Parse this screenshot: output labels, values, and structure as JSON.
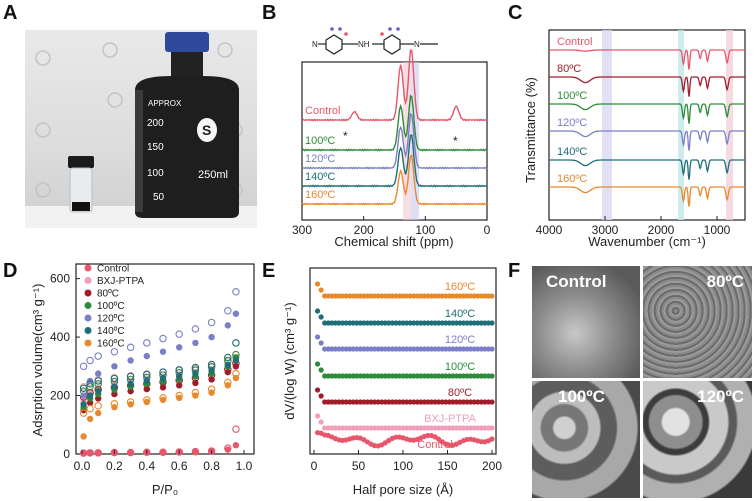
{
  "panels": {
    "A": {
      "letter": "A"
    },
    "B": {
      "letter": "B"
    },
    "C": {
      "letter": "C"
    },
    "D": {
      "letter": "D"
    },
    "E": {
      "letter": "E"
    },
    "F": {
      "letter": "F"
    }
  },
  "photo_A": {
    "bottle_label": "APPROX",
    "marks": [
      "200",
      "150",
      "100",
      "50"
    ],
    "volume": "250ml",
    "logo_letter": "S"
  },
  "sem_labels": [
    "Control",
    "80ºC",
    "100ºC",
    "120ºC"
  ],
  "colors": {
    "Control": "#e8566b",
    "BXJ-PTPA": "#f0a0b8",
    "80C": "#a11d2b",
    "100C": "#2e8b3a",
    "120C": "#7a7fc8",
    "140C": "#1f6e78",
    "160C": "#e88a2c"
  },
  "chart_data": [
    {
      "panel": "B",
      "type": "line",
      "xlabel": "Chemical shift (ppm)",
      "ylabel": "",
      "xlim": [
        300,
        0
      ],
      "xticks": [
        "300",
        "200",
        "100",
        "0"
      ],
      "series": [
        {
          "name": "Control",
          "peaks": [
            [
              140,
              1.0
            ],
            [
              123,
              1.3
            ],
            [
              50,
              0.25
            ],
            [
              215,
              0.15
            ]
          ]
        },
        {
          "name": "100ºC",
          "peaks": [
            [
              140,
              0.8
            ],
            [
              123,
              1.0
            ]
          ]
        },
        {
          "name": "120ºC",
          "peaks": [
            [
              140,
              0.75
            ],
            [
              123,
              1.0
            ]
          ]
        },
        {
          "name": "140ºC",
          "peaks": [
            [
              140,
              0.7
            ],
            [
              123,
              0.95
            ]
          ]
        },
        {
          "name": "160ºC",
          "peaks": [
            [
              140,
              0.6
            ],
            [
              123,
              0.9
            ]
          ]
        }
      ],
      "annotations": [
        "*",
        "*"
      ]
    },
    {
      "panel": "C",
      "type": "line",
      "xlabel": "Wavenumber (cm⁻¹)",
      "ylabel": "Transmittance (%)",
      "xlim": [
        4000,
        500
      ],
      "xticks": [
        "4000",
        "3000",
        "2000",
        "1000"
      ],
      "series": [
        {
          "name": "Control"
        },
        {
          "name": "80ºC"
        },
        {
          "name": "100ºC"
        },
        {
          "name": "120ºC"
        },
        {
          "name": "140ºC"
        },
        {
          "name": "160ºC"
        }
      ]
    },
    {
      "panel": "D",
      "type": "scatter",
      "xlabel": "P/P₀",
      "ylabel": "Adsrption volume(cm³ g⁻¹)",
      "xlim": [
        0,
        1.0
      ],
      "ylim": [
        0,
        650
      ],
      "xticks": [
        "0.0",
        "0.2",
        "0.4",
        "0.6",
        "0.8",
        "1.0"
      ],
      "yticks": [
        "0",
        "200",
        "400",
        "600"
      ],
      "x": [
        0.01,
        0.05,
        0.1,
        0.2,
        0.3,
        0.4,
        0.5,
        0.6,
        0.7,
        0.8,
        0.9,
        0.95
      ],
      "series": [
        {
          "name": "Control",
          "ads": [
            2,
            3,
            3,
            4,
            4,
            5,
            5,
            6,
            7,
            9,
            15,
            30
          ],
          "des": [
            3,
            4,
            4,
            5,
            5,
            6,
            6,
            7,
            8,
            10,
            20,
            85
          ]
        },
        {
          "name": "BXJ-PTPA",
          "ads": [
            180,
            210,
            225,
            240,
            250,
            258,
            265,
            272,
            280,
            290,
            305,
            320
          ],
          "des": [
            230,
            245,
            255,
            262,
            268,
            274,
            280,
            286,
            292,
            300,
            315,
            330
          ]
        },
        {
          "name": "80ºC",
          "ads": [
            150,
            175,
            190,
            205,
            215,
            222,
            228,
            235,
            243,
            255,
            280,
            300
          ],
          "des": [
            195,
            210,
            220,
            228,
            234,
            240,
            246,
            252,
            260,
            270,
            290,
            310
          ]
        },
        {
          "name": "100ºC",
          "ads": [
            160,
            190,
            205,
            220,
            230,
            240,
            248,
            256,
            265,
            275,
            300,
            330
          ],
          "des": [
            215,
            230,
            240,
            248,
            255,
            262,
            270,
            278,
            287,
            298,
            320,
            340
          ]
        },
        {
          "name": "120ºC",
          "ads": [
            200,
            250,
            275,
            300,
            320,
            335,
            350,
            365,
            380,
            400,
            440,
            480
          ],
          "des": [
            300,
            320,
            335,
            350,
            365,
            380,
            395,
            410,
            428,
            450,
            490,
            555
          ]
        },
        {
          "name": "140ºC",
          "ads": [
            170,
            200,
            215,
            230,
            240,
            250,
            258,
            266,
            275,
            285,
            305,
            320
          ],
          "des": [
            225,
            240,
            250,
            258,
            265,
            272,
            280,
            288,
            296,
            306,
            330,
            380
          ]
        },
        {
          "name": "160ºC",
          "ads": [
            60,
            120,
            140,
            160,
            170,
            178,
            185,
            192,
            200,
            210,
            235,
            260
          ],
          "des": [
            140,
            155,
            165,
            172,
            178,
            185,
            192,
            200,
            210,
            222,
            245,
            275
          ]
        }
      ]
    },
    {
      "panel": "E",
      "type": "line",
      "xlabel": "Half pore size (Å)",
      "ylabel": "dV/(log W) (cm³ g⁻¹)",
      "xlim": [
        0,
        200
      ],
      "xticks": [
        "0",
        "50",
        "100",
        "150",
        "200"
      ],
      "series": [
        {
          "name": "160ºC"
        },
        {
          "name": "140ºC"
        },
        {
          "name": "120ºC"
        },
        {
          "name": "100ºC"
        },
        {
          "name": "80ºC"
        },
        {
          "name": "BXJ-PTPA"
        },
        {
          "name": "Control"
        }
      ]
    }
  ]
}
